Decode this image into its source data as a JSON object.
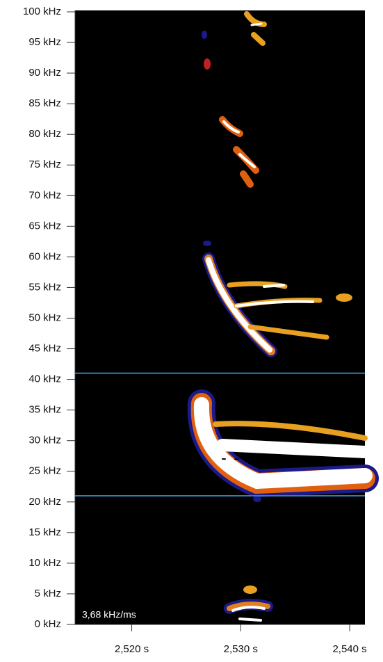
{
  "chart_data": {
    "type": "spectrogram",
    "annotation": "3,68 kHz/ms",
    "xlim": [
      2.5148,
      2.5414
    ],
    "xticks": [
      {
        "value": 2.52,
        "label": "2,520 s"
      },
      {
        "value": 2.53,
        "label": "2,530 s"
      },
      {
        "value": 2.54,
        "label": "2,540 s"
      }
    ],
    "ylim": [
      0,
      100
    ],
    "yticks": [
      {
        "value": 0,
        "label": "0 kHz"
      },
      {
        "value": 5,
        "label": "5 kHz"
      },
      {
        "value": 10,
        "label": "10 kHz"
      },
      {
        "value": 15,
        "label": "15 kHz"
      },
      {
        "value": 20,
        "label": "20 kHz"
      },
      {
        "value": 25,
        "label": "25 kHz"
      },
      {
        "value": 30,
        "label": "30 kHz"
      },
      {
        "value": 35,
        "label": "35 kHz"
      },
      {
        "value": 40,
        "label": "40 kHz"
      },
      {
        "value": 45,
        "label": "45 kHz"
      },
      {
        "value": 50,
        "label": "50 kHz"
      },
      {
        "value": 55,
        "label": "55 kHz"
      },
      {
        "value": 60,
        "label": "60 kHz"
      },
      {
        "value": 65,
        "label": "65 kHz"
      },
      {
        "value": 70,
        "label": "70 kHz"
      },
      {
        "value": 75,
        "label": "75 kHz"
      },
      {
        "value": 80,
        "label": "80 kHz"
      },
      {
        "value": 85,
        "label": "85 kHz"
      },
      {
        "value": 90,
        "label": "90 kHz"
      },
      {
        "value": 95,
        "label": "95 kHz"
      },
      {
        "value": 100,
        "label": "100 kHz"
      }
    ],
    "hlines": [
      41,
      21
    ],
    "hline_color": "#2b7fb8"
  }
}
